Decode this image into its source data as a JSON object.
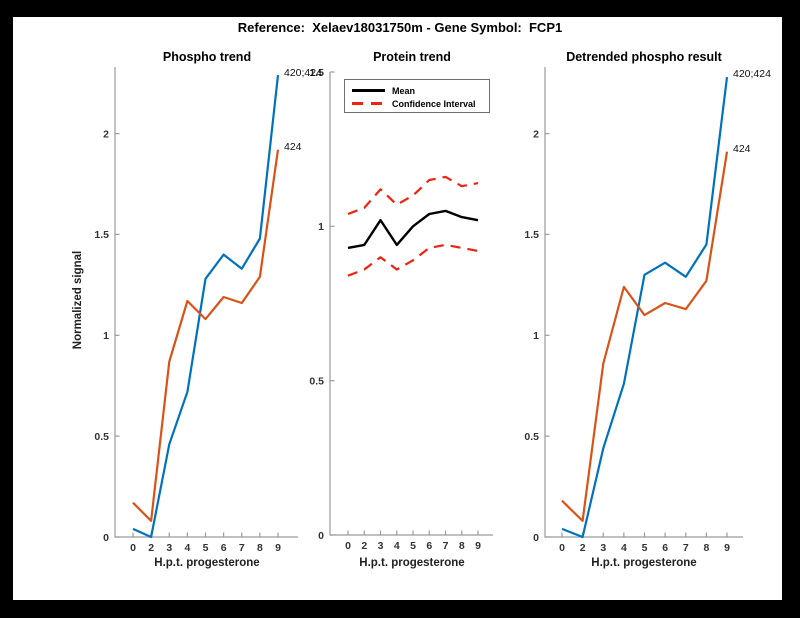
{
  "figure": {
    "title": "Reference:  Xelaev18031750m - Gene Symbol:  FCP1"
  },
  "colors": {
    "blue": "#0072BD",
    "orange": "#D95319",
    "red": "#EE2211",
    "black": "#000000",
    "axis": "#9b9b9b",
    "tick_label": "#333333"
  },
  "chart_data": [
    {
      "type": "line",
      "title": "Phospho trend",
      "xlabel": "H.p.t. progesterone",
      "ylabel": "Normalized signal",
      "categories": [
        "0",
        "2",
        "3",
        "4",
        "5",
        "6",
        "7",
        "8",
        "9"
      ],
      "ylim": [
        0,
        2.33
      ],
      "yticks": [
        0,
        0.5,
        1,
        1.5,
        2
      ],
      "ytick_labels": [
        "0",
        "0.5",
        "1",
        "1.5",
        "2"
      ],
      "grid": false,
      "series": [
        {
          "name": "420;424",
          "color_key": "blue",
          "style": "solid",
          "values": [
            0.04,
            0.0,
            0.46,
            0.72,
            1.28,
            1.4,
            1.33,
            1.48,
            2.29
          ],
          "end_label": "420;424"
        },
        {
          "name": "424",
          "color_key": "orange",
          "style": "solid",
          "values": [
            0.17,
            0.08,
            0.87,
            1.17,
            1.08,
            1.19,
            1.16,
            1.29,
            1.92
          ],
          "end_label": "424"
        }
      ]
    },
    {
      "type": "line",
      "title": "Protein trend",
      "xlabel": "H.p.t. progesterone",
      "ylabel": "",
      "categories": [
        "0",
        "2",
        "3",
        "4",
        "5",
        "6",
        "7",
        "8",
        "9"
      ],
      "ylim": [
        0,
        1.5
      ],
      "yticks": [
        0,
        0.5,
        1,
        1.5
      ],
      "ytick_labels": [
        "0",
        "0.5",
        "1",
        "1.5"
      ],
      "grid": false,
      "legend": {
        "position": "top-left",
        "entries": [
          {
            "label": "Mean",
            "color_key": "black",
            "style": "solid"
          },
          {
            "label": "Confidence Interval",
            "color_key": "red",
            "style": "dashed"
          }
        ]
      },
      "series": [
        {
          "name": "Mean",
          "color_key": "black",
          "style": "solid",
          "values": [
            0.93,
            0.94,
            1.02,
            0.94,
            1.0,
            1.04,
            1.05,
            1.03,
            1.02
          ]
        },
        {
          "name": "Confidence Interval upper",
          "color_key": "red",
          "style": "dashed",
          "values": [
            1.04,
            1.06,
            1.12,
            1.07,
            1.1,
            1.15,
            1.16,
            1.13,
            1.14
          ]
        },
        {
          "name": "Confidence Interval lower",
          "color_key": "red",
          "style": "dashed",
          "values": [
            0.84,
            0.86,
            0.9,
            0.86,
            0.89,
            0.93,
            0.94,
            0.93,
            0.92
          ]
        }
      ]
    },
    {
      "type": "line",
      "title": "Detrended phospho result",
      "xlabel": "H.p.t. progesterone",
      "ylabel": "",
      "categories": [
        "0",
        "2",
        "3",
        "4",
        "5",
        "6",
        "7",
        "8",
        "9"
      ],
      "ylim": [
        0,
        2.33
      ],
      "yticks": [
        0,
        0.5,
        1,
        1.5,
        2
      ],
      "ytick_labels": [
        "0",
        "0.5",
        "1",
        "1.5",
        "2"
      ],
      "grid": false,
      "series": [
        {
          "name": "420;424",
          "color_key": "blue",
          "style": "solid",
          "values": [
            0.04,
            0.0,
            0.44,
            0.76,
            1.3,
            1.36,
            1.29,
            1.45,
            2.28
          ],
          "end_label": "420;424"
        },
        {
          "name": "424",
          "color_key": "orange",
          "style": "solid",
          "values": [
            0.18,
            0.08,
            0.86,
            1.24,
            1.1,
            1.16,
            1.13,
            1.27,
            1.91
          ],
          "end_label": "424"
        }
      ]
    }
  ]
}
